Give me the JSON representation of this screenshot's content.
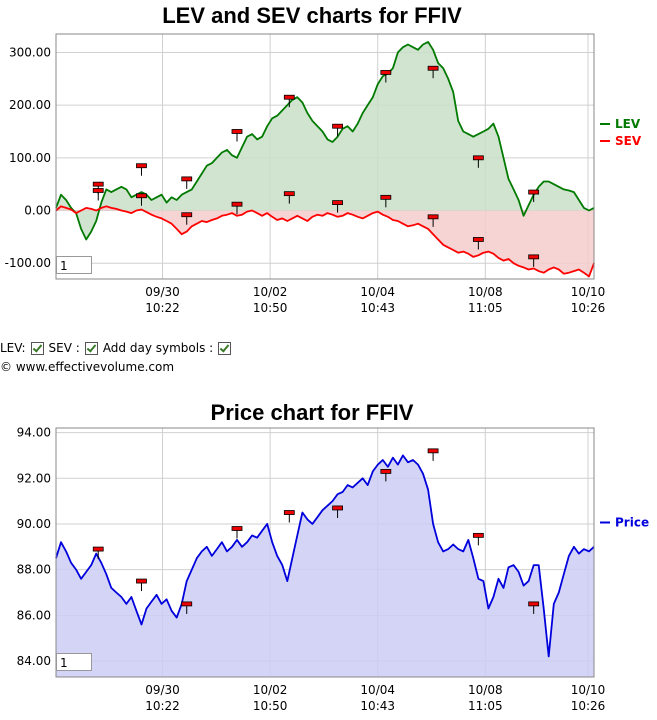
{
  "lev_chart": {
    "title": "LEV and SEV charts for FFIV",
    "zoom_value": "1"
  },
  "price_chart": {
    "title": "Price chart for FFIV",
    "zoom_value": "1"
  },
  "controls": {
    "lev_label": "LEV:",
    "sev_label": "SEV :",
    "day_symbols_label": "Add day symbols :"
  },
  "copyright": "© www.effectivevolume.com",
  "colors": {
    "lev": "#007a00",
    "sev": "#ff0000",
    "price": "#0000dd",
    "lev_fill": "#c8dfc8",
    "sev_fill": "#f5cccc",
    "price_fill": "#ccccf5"
  },
  "chart_data": [
    {
      "type": "area",
      "title": "LEV and SEV charts for FFIV",
      "yticks": [
        "300.00",
        "200.00",
        "100.00",
        "0.00",
        "-100.00"
      ],
      "ylim": [
        -130,
        335
      ],
      "x_tick_labels": [
        {
          "date": "09/30",
          "time": "10:22"
        },
        {
          "date": "10/02",
          "time": "10:50"
        },
        {
          "date": "10/04",
          "time": "10:43"
        },
        {
          "date": "10/08",
          "time": "11:05"
        },
        {
          "date": "10/10",
          "time": "10:26"
        }
      ],
      "legend": {
        "position": "right",
        "entries": [
          "LEV",
          "SEV"
        ]
      },
      "grid": true,
      "series": [
        {
          "name": "LEV",
          "x": [
            0,
            5,
            10,
            15,
            20,
            25,
            30,
            35,
            40,
            45,
            50,
            55,
            60,
            65,
            70,
            75,
            80,
            85,
            90,
            95,
            100,
            105,
            110,
            115,
            120,
            125,
            130,
            135,
            140,
            145,
            150,
            155,
            160,
            165,
            170,
            175,
            180,
            185,
            190,
            195,
            200,
            205,
            210,
            215,
            220,
            225,
            230,
            235,
            240,
            245,
            250,
            255,
            260,
            265,
            270,
            275,
            280,
            285,
            290,
            295,
            300,
            305,
            310,
            315,
            320,
            325,
            330,
            335,
            340,
            345,
            350,
            355,
            360,
            365,
            370,
            375,
            380,
            385,
            390,
            395,
            400,
            405,
            410,
            415,
            420,
            425,
            430,
            435,
            440,
            445,
            450,
            455,
            460,
            465,
            470,
            475,
            480,
            485,
            490,
            495,
            500,
            505,
            510,
            515,
            520,
            525,
            530,
            535
          ],
          "values": [
            5,
            30,
            20,
            5,
            -5,
            -35,
            -55,
            -40,
            -20,
            15,
            40,
            35,
            40,
            45,
            40,
            25,
            30,
            35,
            30,
            20,
            25,
            30,
            15,
            25,
            20,
            30,
            35,
            40,
            55,
            70,
            85,
            90,
            100,
            110,
            115,
            105,
            100,
            120,
            140,
            145,
            135,
            140,
            160,
            175,
            180,
            190,
            200,
            210,
            215,
            205,
            185,
            170,
            160,
            150,
            135,
            130,
            140,
            155,
            160,
            150,
            165,
            185,
            200,
            215,
            240,
            255,
            260,
            270,
            300,
            310,
            315,
            310,
            305,
            315,
            320,
            305,
            280,
            270,
            250,
            225,
            170,
            150,
            145,
            140,
            145,
            150,
            155,
            165,
            140,
            100,
            60,
            40,
            20,
            -10,
            10,
            30,
            45,
            55,
            55,
            50,
            45,
            40,
            38,
            35,
            20,
            5,
            0,
            5
          ],
          "day_markers": [
            {
              "x": 42,
              "value": 50
            },
            {
              "x": 42,
              "value": 38
            },
            {
              "x": 85,
              "value": 85
            },
            {
              "x": 85,
              "value": 28
            },
            {
              "x": 130,
              "value": 60
            },
            {
              "x": 180,
              "value": 150
            },
            {
              "x": 232,
              "value": 215
            },
            {
              "x": 280,
              "value": 160
            },
            {
              "x": 328,
              "value": 262
            },
            {
              "x": 375,
              "value": 270
            },
            {
              "x": 420,
              "value": 100
            },
            {
              "x": 475,
              "value": 35
            }
          ]
        },
        {
          "name": "SEV",
          "x": [
            0,
            5,
            10,
            15,
            20,
            25,
            30,
            35,
            40,
            45,
            50,
            55,
            60,
            65,
            70,
            75,
            80,
            85,
            90,
            95,
            100,
            105,
            110,
            115,
            120,
            125,
            130,
            135,
            140,
            145,
            150,
            155,
            160,
            165,
            170,
            175,
            180,
            185,
            190,
            195,
            200,
            205,
            210,
            215,
            220,
            225,
            230,
            235,
            240,
            245,
            250,
            255,
            260,
            265,
            270,
            275,
            280,
            285,
            290,
            295,
            300,
            305,
            310,
            315,
            320,
            325,
            330,
            335,
            340,
            345,
            350,
            355,
            360,
            365,
            370,
            375,
            380,
            385,
            390,
            395,
            400,
            405,
            410,
            415,
            420,
            425,
            430,
            435,
            440,
            445,
            450,
            455,
            460,
            465,
            470,
            475,
            480,
            485,
            490,
            495,
            500,
            505,
            510,
            515,
            520,
            525,
            530,
            535
          ],
          "values": [
            0,
            8,
            5,
            2,
            -5,
            0,
            5,
            3,
            0,
            5,
            8,
            5,
            3,
            0,
            -2,
            -5,
            0,
            2,
            -3,
            -8,
            -12,
            -15,
            -20,
            -25,
            -35,
            -45,
            -40,
            -30,
            -25,
            -20,
            -22,
            -18,
            -15,
            -10,
            -8,
            -5,
            -10,
            -8,
            -2,
            0,
            -5,
            -10,
            -5,
            -12,
            -18,
            -15,
            -20,
            -15,
            -10,
            -15,
            -20,
            -12,
            -8,
            -10,
            -5,
            -8,
            -12,
            -10,
            -5,
            -8,
            -12,
            -15,
            -10,
            -5,
            -2,
            -8,
            -12,
            -18,
            -20,
            -25,
            -30,
            -28,
            -25,
            -30,
            -35,
            -45,
            -55,
            -65,
            -70,
            -75,
            -80,
            -78,
            -82,
            -88,
            -85,
            -80,
            -78,
            -82,
            -90,
            -95,
            -92,
            -100,
            -105,
            -108,
            -112,
            -110,
            -115,
            -118,
            -112,
            -108,
            -112,
            -120,
            -118,
            -115,
            -112,
            -118,
            -125,
            -100
          ],
          "day_markers": [
            {
              "x": 130,
              "value": -8
            },
            {
              "x": 180,
              "value": 12
            },
            {
              "x": 232,
              "value": 32
            },
            {
              "x": 280,
              "value": 15
            },
            {
              "x": 328,
              "value": 25
            },
            {
              "x": 375,
              "value": -12
            },
            {
              "x": 420,
              "value": -55
            },
            {
              "x": 475,
              "value": -88
            }
          ]
        }
      ]
    },
    {
      "type": "area",
      "title": "Price chart for FFIV",
      "yticks": [
        "94.00",
        "92.00",
        "90.00",
        "88.00",
        "86.00",
        "84.00"
      ],
      "ylim": [
        83.3,
        94.2
      ],
      "x_tick_labels": [
        {
          "date": "09/30",
          "time": "10:22"
        },
        {
          "date": "10/02",
          "time": "10:50"
        },
        {
          "date": "10/04",
          "time": "10:43"
        },
        {
          "date": "10/08",
          "time": "11:05"
        },
        {
          "date": "10/10",
          "time": "10:26"
        }
      ],
      "legend": {
        "position": "right",
        "entries": [
          "Price"
        ]
      },
      "grid": true,
      "series": [
        {
          "name": "Price",
          "x": [
            0,
            5,
            10,
            15,
            20,
            25,
            30,
            35,
            40,
            45,
            50,
            55,
            60,
            65,
            70,
            75,
            80,
            85,
            90,
            95,
            100,
            105,
            110,
            115,
            120,
            125,
            130,
            135,
            140,
            145,
            150,
            155,
            160,
            165,
            170,
            175,
            180,
            185,
            190,
            195,
            200,
            205,
            210,
            215,
            220,
            225,
            230,
            235,
            240,
            245,
            250,
            255,
            260,
            265,
            270,
            275,
            280,
            285,
            290,
            295,
            300,
            305,
            310,
            315,
            320,
            325,
            330,
            335,
            340,
            345,
            350,
            355,
            360,
            365,
            370,
            375,
            380,
            385,
            390,
            395,
            400,
            405,
            410,
            415,
            420,
            425,
            430,
            435,
            440,
            445,
            450,
            455,
            460,
            465,
            470,
            475,
            480,
            485,
            490,
            495,
            500,
            505,
            510,
            515,
            520,
            525,
            530,
            535
          ],
          "values": [
            88.5,
            89.2,
            88.8,
            88.3,
            88.0,
            87.6,
            87.9,
            88.2,
            88.7,
            88.3,
            87.8,
            87.2,
            87.0,
            86.8,
            86.5,
            86.8,
            86.2,
            85.6,
            86.3,
            86.6,
            86.9,
            86.5,
            86.7,
            86.2,
            85.9,
            86.5,
            87.5,
            88.0,
            88.5,
            88.8,
            89.0,
            88.6,
            88.9,
            89.2,
            88.8,
            89.0,
            89.3,
            89.0,
            89.2,
            89.5,
            89.4,
            89.7,
            90.0,
            89.2,
            88.6,
            88.2,
            87.5,
            88.5,
            89.5,
            90.5,
            90.2,
            90.0,
            90.3,
            90.6,
            90.8,
            91.0,
            91.3,
            91.4,
            91.7,
            91.6,
            91.8,
            92.0,
            91.7,
            92.3,
            92.6,
            92.8,
            92.5,
            92.9,
            92.6,
            93.0,
            92.7,
            92.8,
            92.6,
            92.2,
            91.5,
            90.0,
            89.2,
            88.8,
            88.9,
            89.1,
            88.9,
            88.8,
            89.3,
            88.5,
            87.6,
            87.5,
            86.3,
            86.8,
            87.6,
            87.2,
            88.1,
            88.2,
            87.9,
            87.3,
            87.5,
            88.2,
            88.2,
            86.3,
            84.2,
            86.5,
            87.0,
            87.8,
            88.6,
            89.0,
            88.7,
            88.9,
            88.8,
            89.0
          ],
          "day_markers": [
            {
              "x": 42,
              "value": 88.9
            },
            {
              "x": 85,
              "value": 87.5
            },
            {
              "x": 130,
              "value": 86.5
            },
            {
              "x": 180,
              "value": 89.8
            },
            {
              "x": 232,
              "value": 90.5
            },
            {
              "x": 280,
              "value": 90.7
            },
            {
              "x": 328,
              "value": 92.3
            },
            {
              "x": 375,
              "value": 93.2
            },
            {
              "x": 420,
              "value": 89.5
            },
            {
              "x": 475,
              "value": 86.5
            }
          ]
        }
      ]
    }
  ]
}
